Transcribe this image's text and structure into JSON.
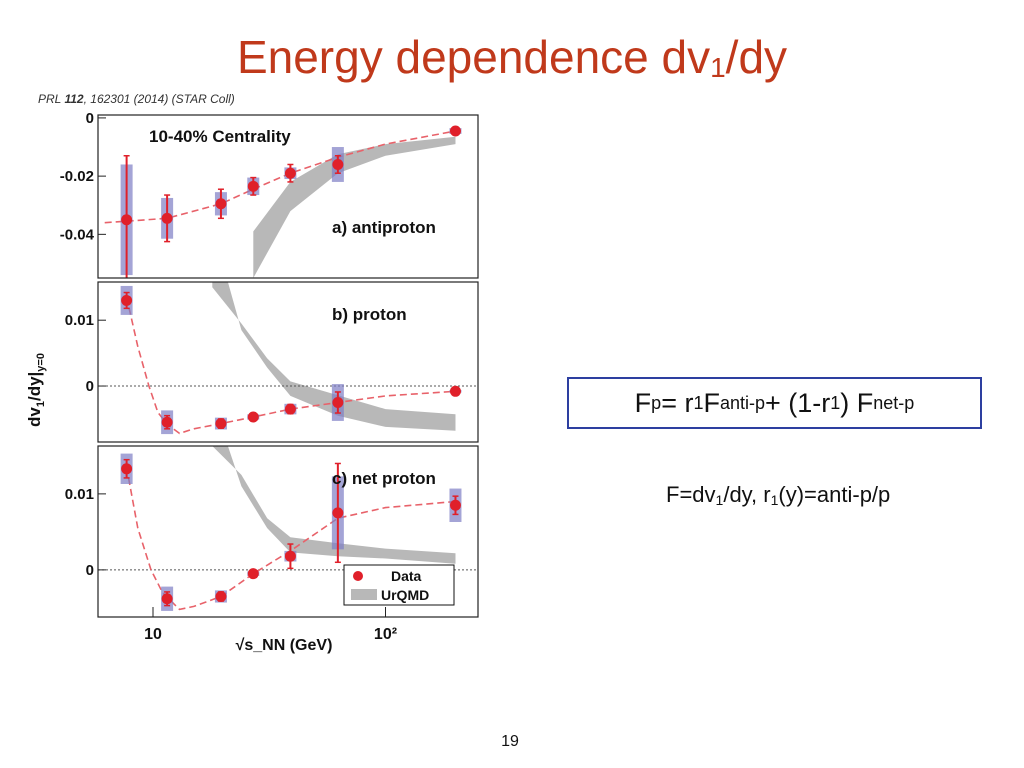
{
  "slide": {
    "title_main": "Energy dependence dv",
    "title_sub": "1",
    "title_tail": "/dy",
    "citation_prefix": "PRL ",
    "citation_volume": "112",
    "citation_rest": ", 162301 (2014) (STAR Coll)",
    "formula": {
      "F": "F",
      "p": "p",
      "eq": " = r",
      "one_a": "1",
      "F2": " F",
      "antip": "anti-p",
      "plus": " + (1-r",
      "one_b": "1",
      "close": ") F",
      "netp": "net-p"
    },
    "definition": {
      "a": "F=dv",
      "one_a": "1",
      "b": "/dy,  r",
      "one_b": "1",
      "c": "(y)=anti-p/p"
    },
    "page_number": "19"
  },
  "chart_data": {
    "type": "scatter",
    "x_scale": "log",
    "xlabel": "√s_NN (GeV)",
    "ylabel": "dv1/dy|y=0",
    "x_ticks": [
      {
        "value": 10,
        "label": "10"
      },
      {
        "value": 100,
        "label": "10²"
      }
    ],
    "x_range": [
      5.8,
      250
    ],
    "legend": {
      "position": "bottom-right",
      "data_label": "Data",
      "model_label": "UrQMD"
    },
    "colors": {
      "data": "#e0202a",
      "sys_box": "#7e7ec4",
      "model_band": "#b8b8b8",
      "fit": "#e8626a"
    },
    "panels": [
      {
        "label": "a) antiproton",
        "header": "10-40% Centrality",
        "ylim": [
          -0.055,
          0.001
        ],
        "y_ticks": [
          {
            "value": 0,
            "label": "0"
          },
          {
            "value": -0.02,
            "label": "-0.02"
          },
          {
            "value": -0.04,
            "label": "-0.04"
          }
        ],
        "zero_line": false,
        "points": [
          {
            "x": 7.7,
            "y": -0.035,
            "stat": 0.022,
            "sys": 0.019
          },
          {
            "x": 11.5,
            "y": -0.0345,
            "stat": 0.008,
            "sys": 0.007
          },
          {
            "x": 19.6,
            "y": -0.0295,
            "stat": 0.005,
            "sys": 0.004
          },
          {
            "x": 27,
            "y": -0.0235,
            "stat": 0.003,
            "sys": 0.003
          },
          {
            "x": 39,
            "y": -0.019,
            "stat": 0.003,
            "sys": 0.002
          },
          {
            "x": 62.4,
            "y": -0.016,
            "stat": 0.003,
            "sys": 0.006
          },
          {
            "x": 200,
            "y": -0.0045,
            "stat": 0.001,
            "sys": 0.001
          }
        ],
        "fit": [
          [
            6.2,
            -0.036
          ],
          [
            7.7,
            -0.0355
          ],
          [
            11.5,
            -0.0345
          ],
          [
            19.6,
            -0.0295
          ],
          [
            27,
            -0.0245
          ],
          [
            39,
            -0.019
          ],
          [
            62.4,
            -0.0135
          ],
          [
            100,
            -0.009
          ],
          [
            200,
            -0.0045
          ]
        ],
        "band_upper": [
          [
            27,
            -0.039
          ],
          [
            39,
            -0.022
          ],
          [
            62.4,
            -0.0125
          ],
          [
            100,
            -0.009
          ],
          [
            200,
            -0.0065
          ]
        ],
        "band_lower": [
          [
            200,
            -0.009
          ],
          [
            100,
            -0.013
          ],
          [
            62.4,
            -0.019
          ],
          [
            39,
            -0.032
          ],
          [
            27,
            -0.055
          ]
        ]
      },
      {
        "label": "b) proton",
        "ylim": [
          -0.0085,
          0.0158
        ],
        "y_ticks": [
          {
            "value": 0.01,
            "label": "0.01"
          },
          {
            "value": 0,
            "label": "0"
          }
        ],
        "zero_line": true,
        "points": [
          {
            "x": 7.7,
            "y": 0.013,
            "stat": 0.0012,
            "sys": 0.0022
          },
          {
            "x": 11.5,
            "y": -0.0055,
            "stat": 0.001,
            "sys": 0.0018
          },
          {
            "x": 19.6,
            "y": -0.0057,
            "stat": 0.0007,
            "sys": 0.0009
          },
          {
            "x": 27,
            "y": -0.0047,
            "stat": 0.0005,
            "sys": 0.0004
          },
          {
            "x": 39,
            "y": -0.0035,
            "stat": 0.0007,
            "sys": 0.0008
          },
          {
            "x": 62.4,
            "y": -0.0025,
            "stat": 0.0016,
            "sys": 0.0028
          },
          {
            "x": 200,
            "y": -0.0008,
            "stat": 0.0003,
            "sys": 0.0002
          }
        ],
        "fit": [
          [
            7.7,
            0.0135
          ],
          [
            8.6,
            0.006
          ],
          [
            9.6,
            0.0
          ],
          [
            10.5,
            -0.004
          ],
          [
            11.5,
            -0.0058
          ],
          [
            13,
            -0.0072
          ],
          [
            15,
            -0.0065
          ],
          [
            19.6,
            -0.0057
          ],
          [
            27,
            -0.0047
          ],
          [
            39,
            -0.0035
          ],
          [
            62.4,
            -0.0025
          ],
          [
            100,
            -0.0015
          ],
          [
            200,
            -0.0008
          ]
        ],
        "band_upper": [
          [
            18,
            0.015
          ],
          [
            24,
            0.0095
          ],
          [
            31,
            0.0042
          ],
          [
            39,
            0.0007
          ],
          [
            62.4,
            -0.0014
          ],
          [
            100,
            -0.0035
          ],
          [
            200,
            -0.0043
          ]
        ],
        "band_lower": [
          [
            200,
            -0.0068
          ],
          [
            100,
            -0.0062
          ],
          [
            62.4,
            -0.0045
          ],
          [
            39,
            -0.0015
          ],
          [
            31,
            0.0028
          ],
          [
            24,
            0.0085
          ],
          [
            21,
            0.0158
          ],
          [
            18,
            0.0158
          ]
        ]
      },
      {
        "label": "c) net proton",
        "ylim": [
          -0.0062,
          0.0163
        ],
        "y_ticks": [
          {
            "value": 0.01,
            "label": "0.01"
          },
          {
            "value": 0,
            "label": "0"
          }
        ],
        "zero_line": true,
        "points": [
          {
            "x": 7.7,
            "y": 0.0133,
            "stat": 0.0012,
            "sys": 0.002
          },
          {
            "x": 11.5,
            "y": -0.0038,
            "stat": 0.0009,
            "sys": 0.0016
          },
          {
            "x": 19.6,
            "y": -0.0035,
            "stat": 0.0006,
            "sys": 0.0008
          },
          {
            "x": 27,
            "y": -0.0005,
            "stat": 0.0004,
            "sys": 0.0003
          },
          {
            "x": 39,
            "y": 0.0018,
            "stat": 0.0016,
            "sys": 0.0007
          },
          {
            "x": 62.4,
            "y": 0.0075,
            "stat": 0.0065,
            "sys": 0.0048
          },
          {
            "x": 200,
            "y": 0.0085,
            "stat": 0.0012,
            "sys": 0.0022
          }
        ],
        "fit": [
          [
            7.7,
            0.0135
          ],
          [
            8.6,
            0.0055
          ],
          [
            9.8,
            0.0
          ],
          [
            11,
            -0.003
          ],
          [
            13,
            -0.0052
          ],
          [
            15,
            -0.0048
          ],
          [
            19.6,
            -0.0035
          ],
          [
            27,
            -0.0005
          ],
          [
            39,
            0.0025
          ],
          [
            62.4,
            0.0068
          ],
          [
            100,
            0.0082
          ],
          [
            200,
            0.009
          ]
        ],
        "band_upper": [
          [
            18,
            0.0163
          ],
          [
            24,
            0.0125
          ],
          [
            31,
            0.0068
          ],
          [
            39,
            0.0043
          ],
          [
            62.4,
            0.0035
          ],
          [
            100,
            0.0028
          ],
          [
            200,
            0.0022
          ]
        ],
        "band_lower": [
          [
            200,
            0.0008
          ],
          [
            100,
            0.0015
          ],
          [
            62.4,
            0.0018
          ],
          [
            39,
            0.0023
          ],
          [
            31,
            0.0055
          ],
          [
            24,
            0.011
          ],
          [
            21,
            0.0163
          ],
          [
            18,
            0.0163
          ]
        ]
      }
    ]
  }
}
